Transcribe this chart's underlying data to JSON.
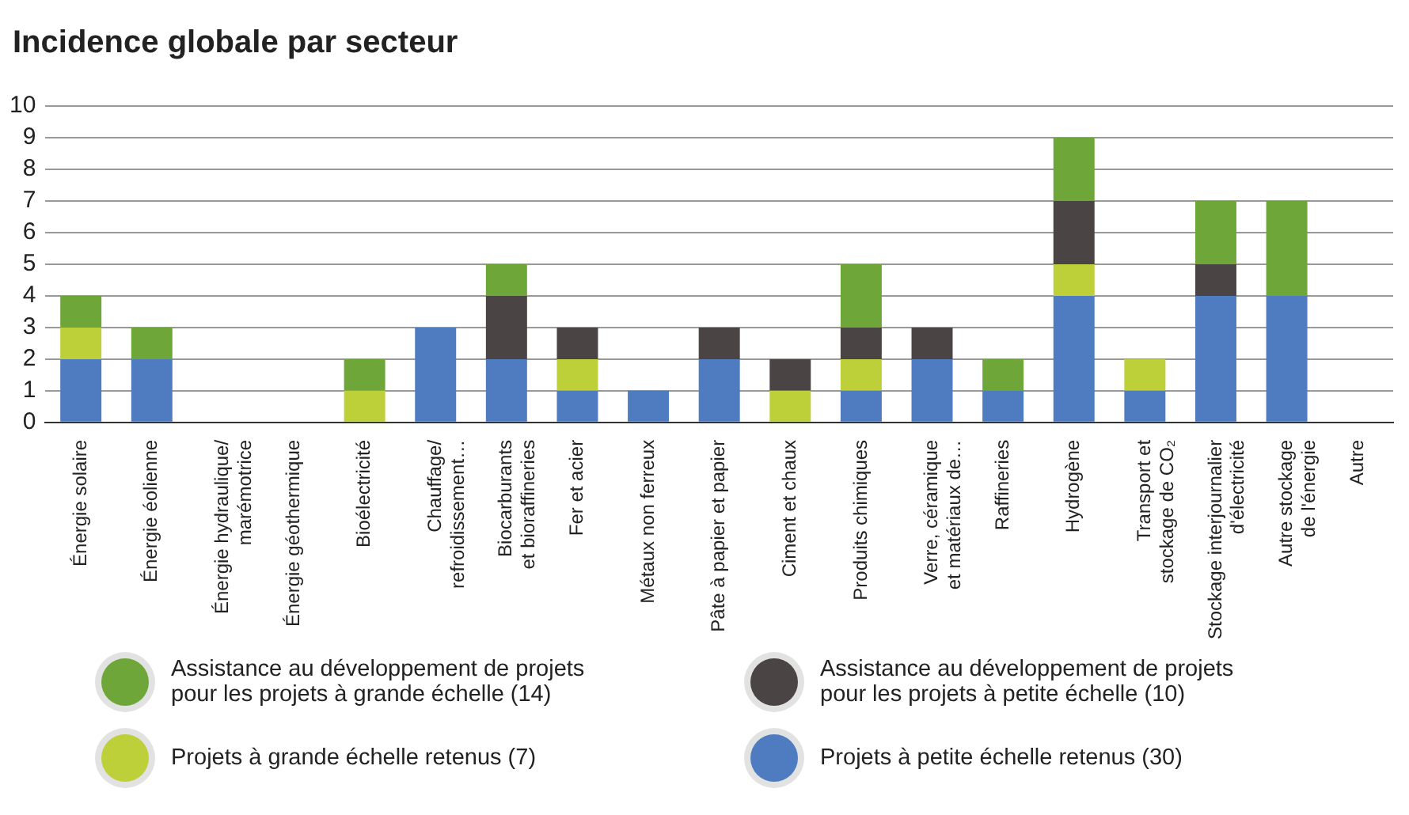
{
  "chart_data": {
    "type": "bar",
    "title": "Incidence globale par secteur",
    "stacked": true,
    "categories": [
      "Énergie solaire",
      "Énergie éolienne",
      "Énergie hydraulique/\nmarémotrice",
      "Énergie géothermique",
      "Bioélectricité",
      "Chauffage/\nrefroidissement…",
      "Biocarburants\net bioraffineries",
      "Fer et acier",
      "Métaux non ferreux",
      "Pâte à papier et papier",
      "Ciment et chaux",
      "Produits chimiques",
      "Verre, céramique\net matériaux de…",
      "Raffineries",
      "Hydrogène",
      "Transport et\nstockage de CO₂",
      "Stockage interjournalier\nd'électricité",
      "Autre stockage\nde l'énergie",
      "Autre"
    ],
    "series": [
      {
        "name": "Projets à petite échelle retenus (30)",
        "color": "#4f7cc0",
        "values": [
          2,
          2,
          0,
          0,
          0,
          3,
          2,
          1,
          1,
          2,
          0,
          1,
          2,
          1,
          4,
          1,
          4,
          4,
          0
        ]
      },
      {
        "name": "Projets à grande échelle retenus (7)",
        "color": "#bdd03a",
        "values": [
          1,
          0,
          0,
          0,
          1,
          0,
          0,
          1,
          0,
          0,
          1,
          1,
          0,
          0,
          1,
          1,
          0,
          0,
          0
        ]
      },
      {
        "name": "Assistance au développement de projets\npour les projets à petite échelle (10)",
        "color": "#4a4544",
        "values": [
          0,
          0,
          0,
          0,
          0,
          0,
          2,
          1,
          0,
          1,
          1,
          1,
          1,
          0,
          2,
          0,
          1,
          0,
          0
        ]
      },
      {
        "name": "Assistance au développement de projets\npour les projets à grande échelle (14)",
        "color": "#6fa63a",
        "values": [
          1,
          1,
          0,
          0,
          1,
          0,
          1,
          0,
          0,
          0,
          0,
          2,
          0,
          1,
          2,
          0,
          2,
          3,
          0
        ]
      }
    ],
    "ylim": [
      0,
      10
    ],
    "yticks": [
      0,
      1,
      2,
      3,
      4,
      5,
      6,
      7,
      8,
      9,
      10
    ],
    "grid": "y",
    "legend": "bottom"
  }
}
